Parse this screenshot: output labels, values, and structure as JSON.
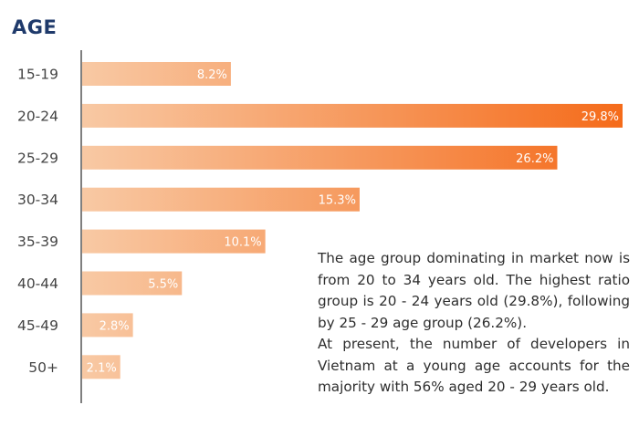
{
  "chart_data": {
    "type": "bar",
    "orientation": "horizontal",
    "title": "AGE",
    "categories": [
      "15-19",
      "20-24",
      "25-29",
      "30-34",
      "35-39",
      "40-44",
      "45-49",
      "50+"
    ],
    "values": [
      8.2,
      29.8,
      26.2,
      15.3,
      10.1,
      5.5,
      2.8,
      2.1
    ],
    "value_labels": [
      "8.2%",
      "29.8%",
      "26.2%",
      "15.3%",
      "10.1%",
      "5.5%",
      "2.8%",
      "2.1%"
    ],
    "xlabel": "",
    "ylabel": "",
    "xlim": [
      0,
      30
    ],
    "grid": false,
    "legend": "none",
    "colors": {
      "light": "#f8c9a4",
      "dark": "#f56b1a",
      "axis": "#555555",
      "label": "#444444"
    }
  },
  "note": {
    "paragraph_1": "The age group dominating in market now is from 20 to 34 years old. The highest ratio group is 20 - 24 years old (29.8%), following by 25 - 29 age group (26.2%).",
    "paragraph_2": "At present, the number of developers in Vietnam at a young age accounts for the majority with 56% aged 20 - 29 years old."
  }
}
